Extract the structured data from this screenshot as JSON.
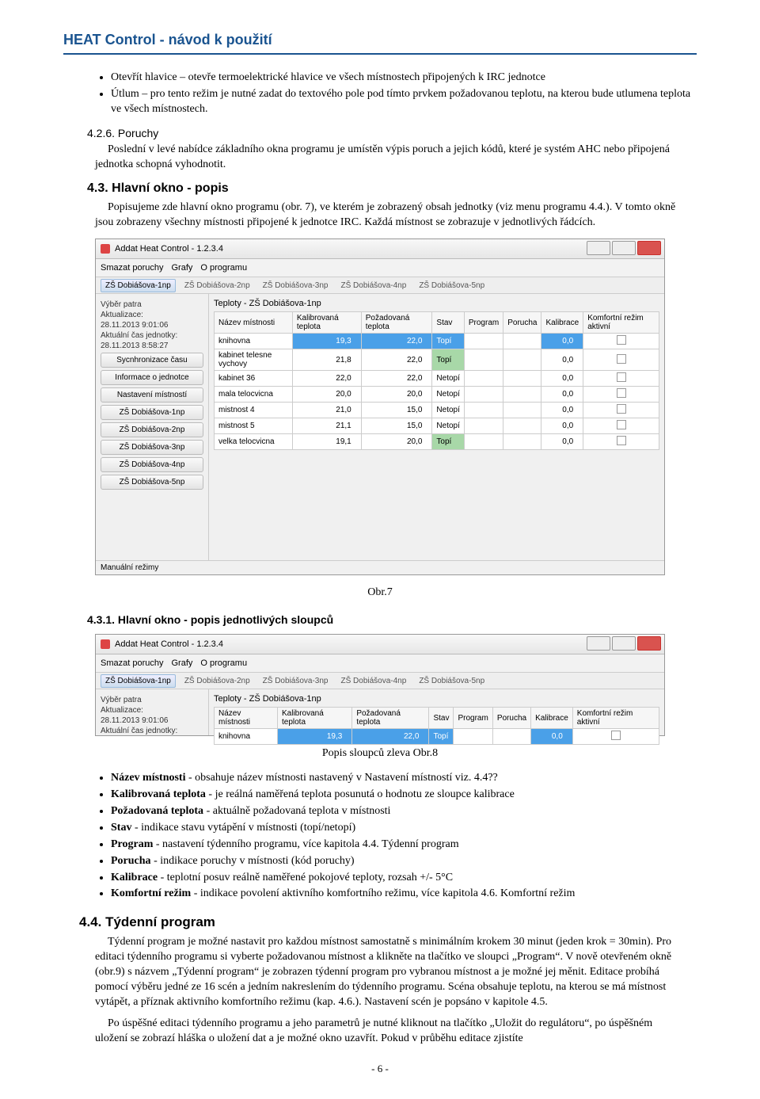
{
  "header": "HEAT Control - návod k použití",
  "intro_bullets": [
    "Otevřít hlavice – otevře termoelektrické hlavice ve všech místnostech připojených k IRC jednotce",
    "Útlum – pro tento režim je nutné zadat do textového pole pod tímto prvkem požadovanou teplotu, na kterou bude utlumena teplota ve všech místnostech."
  ],
  "s426_title": "4.2.6. Poruchy",
  "s426_body": "Poslední v levé nabídce základního okna programu je umístěn výpis poruch a jejich kódů, které je systém AHC nebo připojená jednotka schopná vyhodnotit.",
  "s43_title": "4.3. Hlavní okno - popis",
  "s43_body": "Popisujeme zde hlavní okno programu (obr. 7), ve kterém je zobrazený obsah jednotky (viz menu programu 4.4.). V tomto okně jsou zobrazeny všechny místnosti připojené k jednotce IRC. Každá místnost se zobrazuje v jednotlivých řádcích.",
  "fig7": "Obr.7",
  "s431_title": "4.3.1. Hlavní okno - popis jednotlivých sloupců",
  "fig8": "Popis sloupců zleva  Obr.8",
  "s431_bullets": [
    "Název místnosti - obsahuje název místnosti nastavený v Nastavení místností viz. 4.4??",
    "Kalibrovaná teplota - je reálná naměřená teplota posunutá o hodnotu ze sloupce kalibrace",
    "Požadovaná teplota - aktuálně požadovaná teplota v místnosti",
    "Stav -  indikace stavu vytápění v místnosti (topí/netopí)",
    "Program - nastavení týdenního programu, více kapitola 4.4. Týdenní program",
    "Porucha - indikace poruchy v místnosti (kód poruchy)",
    "Kalibrace - teplotní posuv reálně naměřené pokojové teploty, rozsah +/- 5°C",
    "Komfortní režim - indikace povolení aktivního komfortního režimu, více kapitola 4.6. Komfortní režim"
  ],
  "s44_title": "4.4. Týdenní program",
  "s44_p1": "Týdenní program je možné nastavit pro každou místnost samostatně s minimálním krokem 30 minut (jeden krok = 30min). Pro editaci týdenního programu si vyberte požadovanou místnost a klikněte na tlačítko ve sloupci „Program“. V nově otevřeném okně (obr.9) s názvem „Týdenní program“  je  zobrazen týdenní program pro vybranou místnost a je možné jej měnit.  Editace probíhá pomocí výběru jedné ze 16 scén a jedním nakreslením do týdenního programu.  Scéna obsahuje teplotu, na kterou se má místnost vytápět, a příznak aktivního komfort­ního režimu (kap. 4.6.). Nastavení scén je popsáno v kapitole 4.5.",
  "s44_p2": "Po úspěšné editaci týdenního programu a jeho parametrů je nutné kliknout na tlačítko „Uložit do regulátoru“, po úspěšném uložení se zobrazí hláška o uložení dat a je možné okno uzavřít. Pokud v průběhu editace zjistíte",
  "page_num": "- 6 -",
  "app": {
    "title": "Addat Heat Control - 1.2.3.4",
    "menu": [
      "Smazat poruchy",
      "Grafy",
      "O programu"
    ],
    "tabs": [
      "ZŠ Dobiášova-1np",
      "ZŠ Dobiášova-2np",
      "ZŠ Dobiášova-3np",
      "ZŠ Dobiášova-4np",
      "ZŠ Dobiášova-5np"
    ],
    "sidebar": {
      "label1": "Výběr patra",
      "label2": "Aktualizace:",
      "time1": "28.11.2013 9:01:06",
      "label3": "Aktuální čas jednotky:",
      "time2": "28.11.2013 8:58:27",
      "buttons": [
        "Sycnhronizace času",
        "Informace o jednotce",
        "Nastavení místností",
        "ZŠ Dobiášova-1np",
        "ZŠ Dobiášova-2np",
        "ZŠ Dobiášova-3np",
        "ZŠ Dobiášova-4np",
        "ZŠ Dobiášova-5np"
      ],
      "bottom": "Manuální režimy"
    },
    "grid_title": "Teploty - ZŠ Dobiášova-1np",
    "cols": [
      "Název místnosti",
      "Kalibrovaná teplota",
      "Požadovaná teplota",
      "Stav",
      "Program",
      "Porucha",
      "Kalibrace",
      "Komfortní režim aktivní"
    ],
    "rows": [
      {
        "name": "knihovna",
        "k": "19,3",
        "p": "22,0",
        "stav": "Topí",
        "kal": "0,0",
        "sel": true
      },
      {
        "name": "kabinet telesne vychovy",
        "k": "21,8",
        "p": "22,0",
        "stav": "Topí",
        "kal": "0,0",
        "topi": true
      },
      {
        "name": "kabinet 36",
        "k": "22,0",
        "p": "22,0",
        "stav": "Netopí",
        "kal": "0,0"
      },
      {
        "name": "mala telocvicna",
        "k": "20,0",
        "p": "20,0",
        "stav": "Netopí",
        "kal": "0,0"
      },
      {
        "name": "mistnost 4",
        "k": "21,0",
        "p": "15,0",
        "stav": "Netopí",
        "kal": "0,0"
      },
      {
        "name": "mistnost 5",
        "k": "21,1",
        "p": "15,0",
        "stav": "Netopí",
        "kal": "0,0"
      },
      {
        "name": "velka telocvicna",
        "k": "19,1",
        "p": "20,0",
        "stav": "Topí",
        "kal": "0,0",
        "topi": true
      }
    ]
  }
}
